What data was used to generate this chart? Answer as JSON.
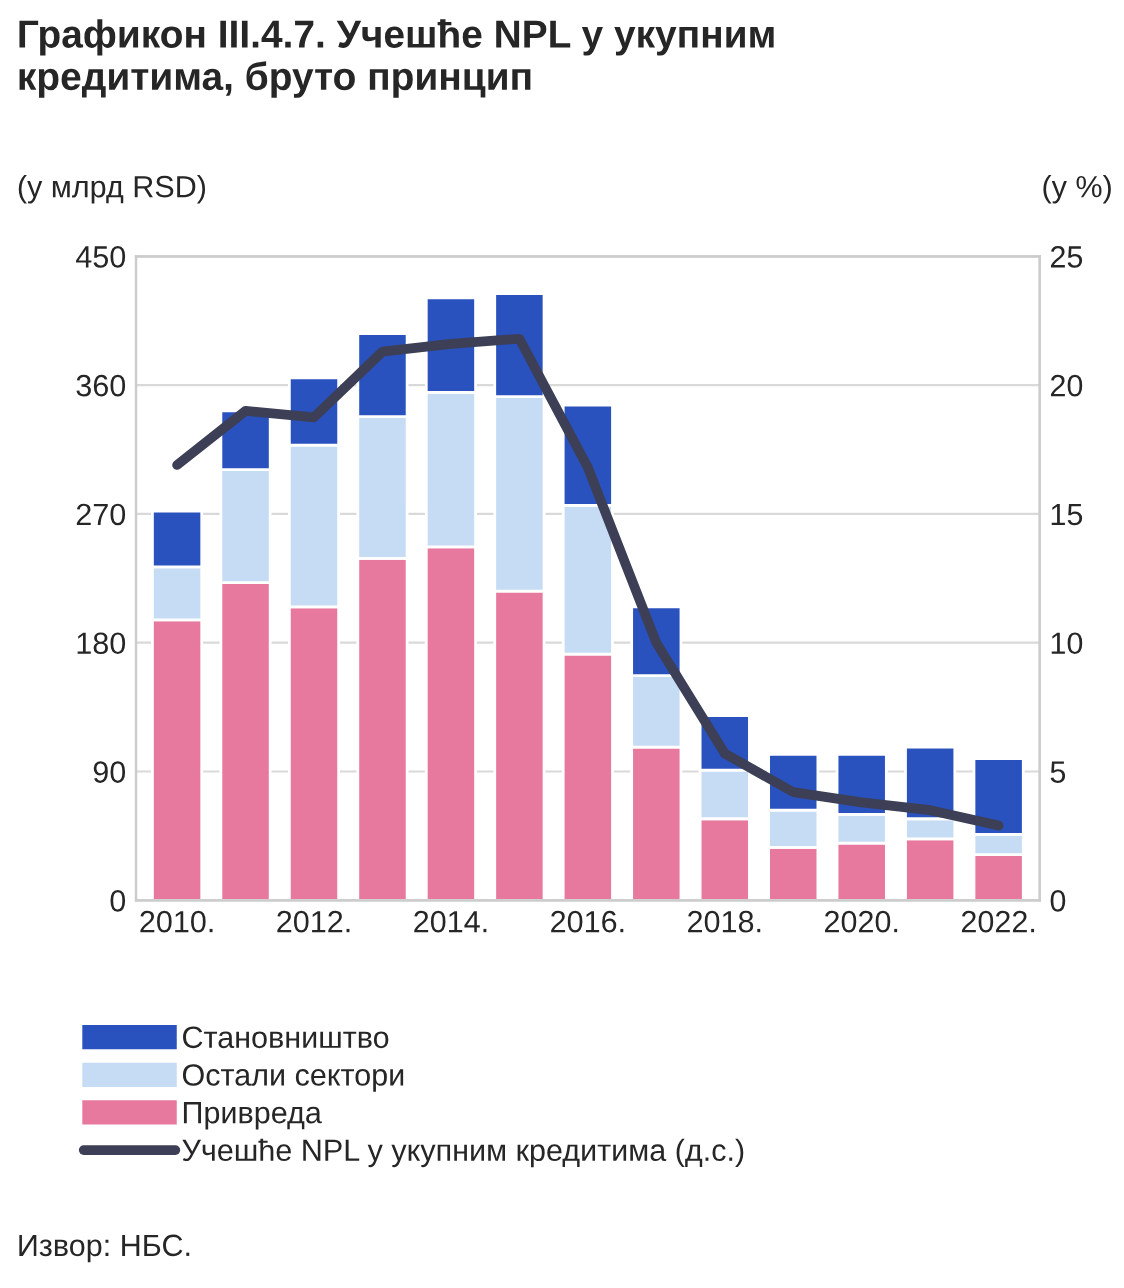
{
  "chart_data": {
    "type": "bar",
    "title": "Графикон III.4.7. Учешће NPL у укупним\nкредитима, бруто принцип",
    "ylabel": "(у млрд RSD)",
    "y2label": "(у %)",
    "categories": [
      "2010.",
      null,
      "2012.",
      null,
      "2014.",
      null,
      "2016.",
      null,
      "2018.",
      null,
      "2020.",
      null,
      "2022."
    ],
    "stacked": true,
    "ylim": [
      0,
      450
    ],
    "yticks": [
      0,
      90,
      180,
      270,
      360,
      450
    ],
    "y2lim": [
      0,
      25
    ],
    "y2ticks": [
      0,
      5,
      10,
      15,
      20,
      25
    ],
    "grid": "y",
    "legend": "bottom",
    "series": [
      {
        "name": "Привреда",
        "color": "#e8799e",
        "values": [
          196,
          222,
          205,
          239,
          247,
          216,
          172,
          107,
          57,
          37,
          40,
          43,
          32
        ]
      },
      {
        "name": "Остали сектори",
        "color": "#c6dcf5",
        "values": [
          37,
          79,
          113,
          99,
          108,
          136,
          104,
          50,
          34,
          26,
          20,
          14,
          14
        ]
      },
      {
        "name": "Становништво",
        "color": "#2a52be",
        "values": [
          39,
          41,
          47,
          58,
          66,
          72,
          70,
          48,
          38,
          39,
          42,
          50,
          53
        ]
      },
      {
        "name": "Учешће NPL у укупним кредитима (д.с.)",
        "type": "line",
        "axis": "y2",
        "color": "#3c3f55",
        "values": [
          16.9,
          19.0,
          18.75,
          21.3,
          21.6,
          21.8,
          16.8,
          10.0,
          5.7,
          4.2,
          3.8,
          3.5,
          2.9
        ]
      }
    ],
    "annotations": [
      "Извор: НБС."
    ]
  }
}
